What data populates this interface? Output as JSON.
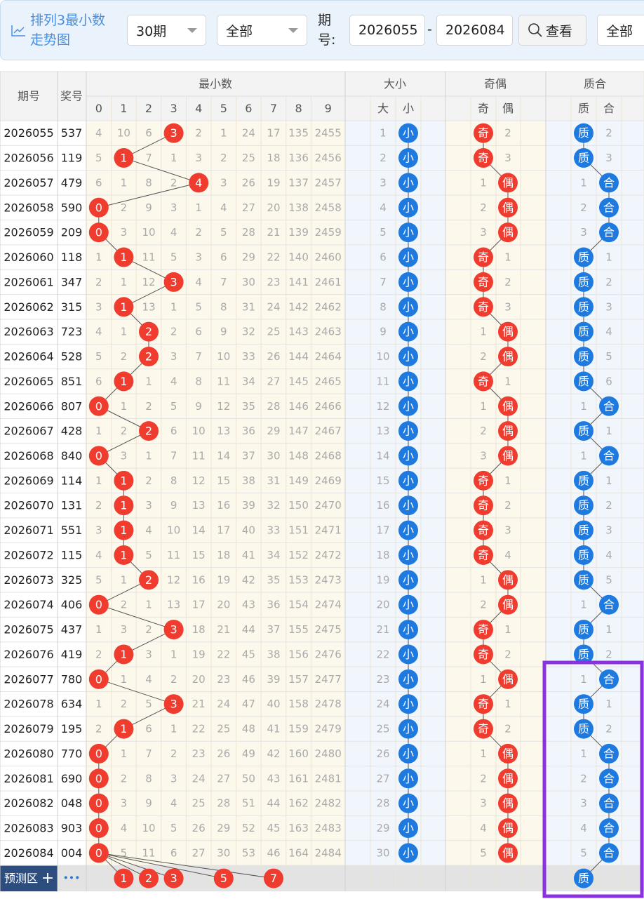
{
  "header": {
    "title": "排列3最小数走势图",
    "period_select": "30期",
    "filter_select": "全部",
    "period_label": "期号:",
    "from": "2026055",
    "dash": "-",
    "to": "2026084",
    "view": "查看",
    "filter2": "全部"
  },
  "table": {
    "columns": {
      "period": "期号",
      "number": "奖号",
      "min": "最小数",
      "digits": [
        "0",
        "1",
        "2",
        "3",
        "4",
        "5",
        "6",
        "7",
        "8",
        "9"
      ],
      "size": "大小",
      "size_sub": [
        "大",
        "小"
      ],
      "parity": "奇偶",
      "parity_sub": [
        "奇",
        "偶"
      ],
      "prime": "质合",
      "prime_sub": [
        "质",
        "合"
      ]
    },
    "rows": [
      [
        "2026055",
        "537",
        4,
        10,
        6,
        "3",
        2,
        1,
        24,
        17,
        135,
        2455,
        1,
        "小",
        "奇",
        2,
        "质",
        2
      ],
      [
        "2026056",
        "119",
        5,
        "1",
        7,
        1,
        3,
        2,
        25,
        18,
        136,
        2456,
        2,
        "小",
        "奇",
        3,
        "质",
        3
      ],
      [
        "2026057",
        "479",
        6,
        1,
        8,
        2,
        "4",
        3,
        26,
        19,
        137,
        2457,
        3,
        "小",
        1,
        "偶",
        1,
        "合"
      ],
      [
        "2026058",
        "590",
        "0",
        2,
        9,
        3,
        1,
        4,
        27,
        20,
        138,
        2458,
        4,
        "小",
        2,
        "偶",
        2,
        "合"
      ],
      [
        "2026059",
        "209",
        "0",
        3,
        10,
        4,
        2,
        5,
        28,
        21,
        139,
        2459,
        5,
        "小",
        3,
        "偶",
        3,
        "合"
      ],
      [
        "2026060",
        "118",
        1,
        "1",
        11,
        5,
        3,
        6,
        29,
        22,
        140,
        2460,
        6,
        "小",
        "奇",
        1,
        "质",
        1
      ],
      [
        "2026061",
        "347",
        2,
        1,
        12,
        "3",
        4,
        7,
        30,
        23,
        141,
        2461,
        7,
        "小",
        "奇",
        2,
        "质",
        2
      ],
      [
        "2026062",
        "315",
        3,
        "1",
        13,
        1,
        5,
        8,
        31,
        24,
        142,
        2462,
        8,
        "小",
        "奇",
        3,
        "质",
        3
      ],
      [
        "2026063",
        "723",
        4,
        1,
        "2",
        2,
        6,
        9,
        32,
        25,
        143,
        2463,
        9,
        "小",
        1,
        "偶",
        "质",
        4
      ],
      [
        "2026064",
        "528",
        5,
        2,
        "2",
        3,
        7,
        10,
        33,
        26,
        144,
        2464,
        10,
        "小",
        2,
        "偶",
        "质",
        5
      ],
      [
        "2026065",
        "851",
        6,
        "1",
        1,
        4,
        8,
        11,
        34,
        27,
        145,
        2465,
        11,
        "小",
        "奇",
        1,
        "质",
        6
      ],
      [
        "2026066",
        "807",
        "0",
        1,
        2,
        5,
        9,
        12,
        35,
        28,
        146,
        2466,
        12,
        "小",
        1,
        "偶",
        1,
        "合"
      ],
      [
        "2026067",
        "428",
        1,
        2,
        "2",
        6,
        10,
        13,
        36,
        29,
        147,
        2467,
        13,
        "小",
        2,
        "偶",
        "质",
        1
      ],
      [
        "2026068",
        "840",
        "0",
        3,
        1,
        7,
        11,
        14,
        37,
        30,
        148,
        2468,
        14,
        "小",
        3,
        "偶",
        1,
        "合"
      ],
      [
        "2026069",
        "114",
        1,
        "1",
        2,
        8,
        12,
        15,
        38,
        31,
        149,
        2469,
        15,
        "小",
        "奇",
        1,
        "质",
        1
      ],
      [
        "2026070",
        "131",
        2,
        "1",
        3,
        9,
        13,
        16,
        39,
        32,
        150,
        2470,
        16,
        "小",
        "奇",
        2,
        "质",
        2
      ],
      [
        "2026071",
        "551",
        3,
        "1",
        4,
        10,
        14,
        17,
        40,
        33,
        151,
        2471,
        17,
        "小",
        "奇",
        3,
        "质",
        3
      ],
      [
        "2026072",
        "115",
        4,
        "1",
        5,
        11,
        15,
        18,
        41,
        34,
        152,
        2472,
        18,
        "小",
        "奇",
        4,
        "质",
        4
      ],
      [
        "2026073",
        "325",
        5,
        1,
        "2",
        12,
        16,
        19,
        42,
        35,
        153,
        2473,
        19,
        "小",
        1,
        "偶",
        "质",
        5
      ],
      [
        "2026074",
        "406",
        "0",
        2,
        1,
        13,
        17,
        20,
        43,
        36,
        154,
        2474,
        20,
        "小",
        2,
        "偶",
        1,
        "合"
      ],
      [
        "2026075",
        "437",
        1,
        3,
        2,
        "3",
        18,
        21,
        44,
        37,
        155,
        2475,
        21,
        "小",
        "奇",
        1,
        "质",
        1
      ],
      [
        "2026076",
        "419",
        2,
        "1",
        3,
        1,
        19,
        22,
        45,
        38,
        156,
        2476,
        22,
        "小",
        "奇",
        2,
        "质",
        2
      ],
      [
        "2026077",
        "780",
        "0",
        1,
        4,
        2,
        20,
        23,
        46,
        39,
        157,
        2477,
        23,
        "小",
        1,
        "偶",
        1,
        "合"
      ],
      [
        "2026078",
        "634",
        1,
        2,
        5,
        "3",
        21,
        24,
        47,
        40,
        158,
        2478,
        24,
        "小",
        "奇",
        1,
        "质",
        1
      ],
      [
        "2026079",
        "195",
        2,
        "1",
        6,
        1,
        22,
        25,
        48,
        41,
        159,
        2479,
        25,
        "小",
        "奇",
        2,
        "质",
        2
      ],
      [
        "2026080",
        "770",
        "0",
        1,
        7,
        2,
        23,
        26,
        49,
        42,
        160,
        2480,
        26,
        "小",
        1,
        "偶",
        1,
        "合"
      ],
      [
        "2026081",
        "690",
        "0",
        2,
        8,
        3,
        24,
        27,
        50,
        43,
        161,
        2481,
        27,
        "小",
        2,
        "偶",
        2,
        "合"
      ],
      [
        "2026082",
        "048",
        "0",
        3,
        9,
        4,
        25,
        28,
        51,
        44,
        162,
        2482,
        28,
        "小",
        3,
        "偶",
        3,
        "合"
      ],
      [
        "2026083",
        "903",
        "0",
        4,
        10,
        5,
        26,
        29,
        52,
        45,
        163,
        2483,
        29,
        "小",
        4,
        "偶",
        4,
        "合"
      ],
      [
        "2026084",
        "004",
        "0",
        5,
        11,
        6,
        27,
        30,
        53,
        46,
        164,
        2484,
        30,
        "小",
        5,
        "偶",
        5,
        "合"
      ]
    ],
    "forecast": {
      "label": "预测区",
      "plus": "+",
      "more": "•••",
      "min": [
        "1",
        "2",
        "3",
        "5",
        "7"
      ],
      "prime": "质"
    }
  }
}
